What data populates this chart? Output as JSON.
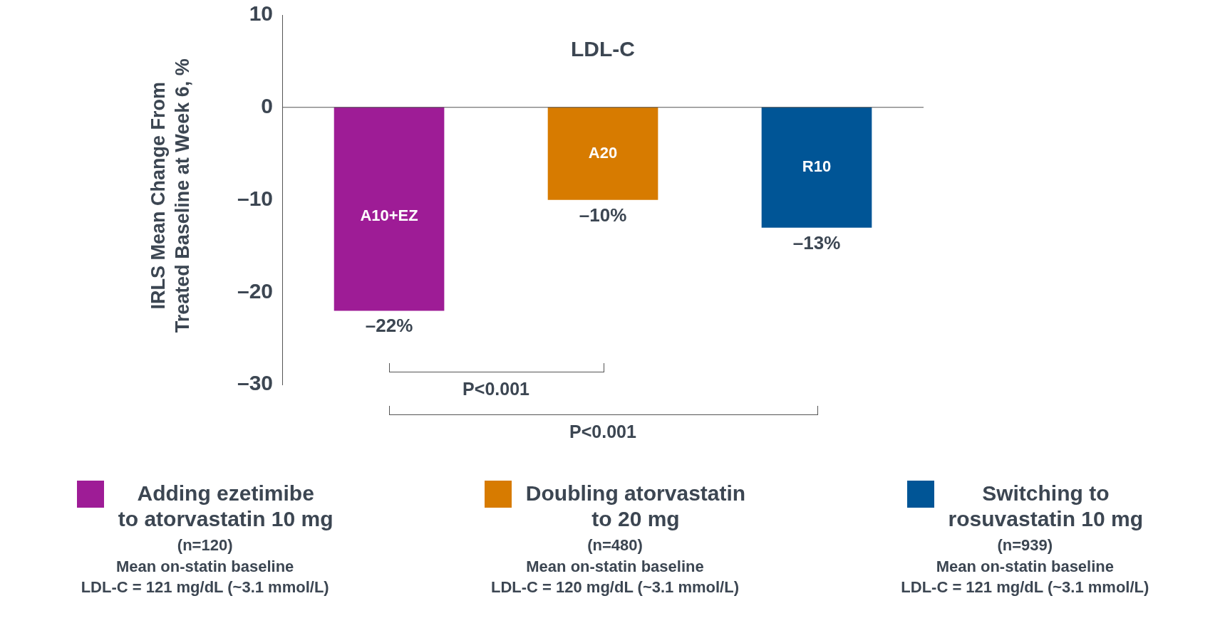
{
  "chart_data": {
    "type": "bar",
    "title": "LDL-C",
    "ylabel": "IRLS Mean Change From\nTreated Baseline at Week 6, %",
    "categories": [
      "A10+EZ",
      "A20",
      "R10"
    ],
    "series": [
      {
        "name": "Adding ezetimibe\nto atorvastatin 10 mg",
        "color": "#9e1c96",
        "values": [
          -22,
          null,
          null
        ],
        "value_labels": [
          "–22%",
          null,
          null
        ]
      },
      {
        "name": "Doubling atorvastatin\nto 20 mg",
        "color": "#d77b00",
        "values": [
          null,
          -10,
          null
        ],
        "value_labels": [
          null,
          "–10%",
          null
        ]
      },
      {
        "name": "Switching to\nrosuvastatin 10 mg",
        "color": "#005596",
        "values": [
          null,
          null,
          -13
        ],
        "value_labels": [
          null,
          null,
          "–13%"
        ]
      }
    ],
    "ylim": [
      -30,
      10
    ],
    "yticks": [
      {
        "value": -30,
        "label": "–30"
      },
      {
        "value": -20,
        "label": "–20"
      },
      {
        "value": -10,
        "label": "–10"
      },
      0,
      10
    ],
    "grid": false,
    "ref_lines": [
      {
        "axis": "y",
        "value": 0,
        "color": "#555555"
      }
    ],
    "legend": "bottom",
    "annotations": [
      "(n=120)\nMean on-statin baseline\nLDL-C = 121 mg/dL (~3.1 mmol/L)",
      "(n=480)\nMean on-statin baseline\nLDL-C = 120 mg/dL (~3.1 mmol/L)",
      "(n=939)\nMean on-statin baseline\nLDL-C = 121 mg/dL (~3.1 mmol/L)",
      "P<0.001",
      "P<0.001"
    ]
  }
}
